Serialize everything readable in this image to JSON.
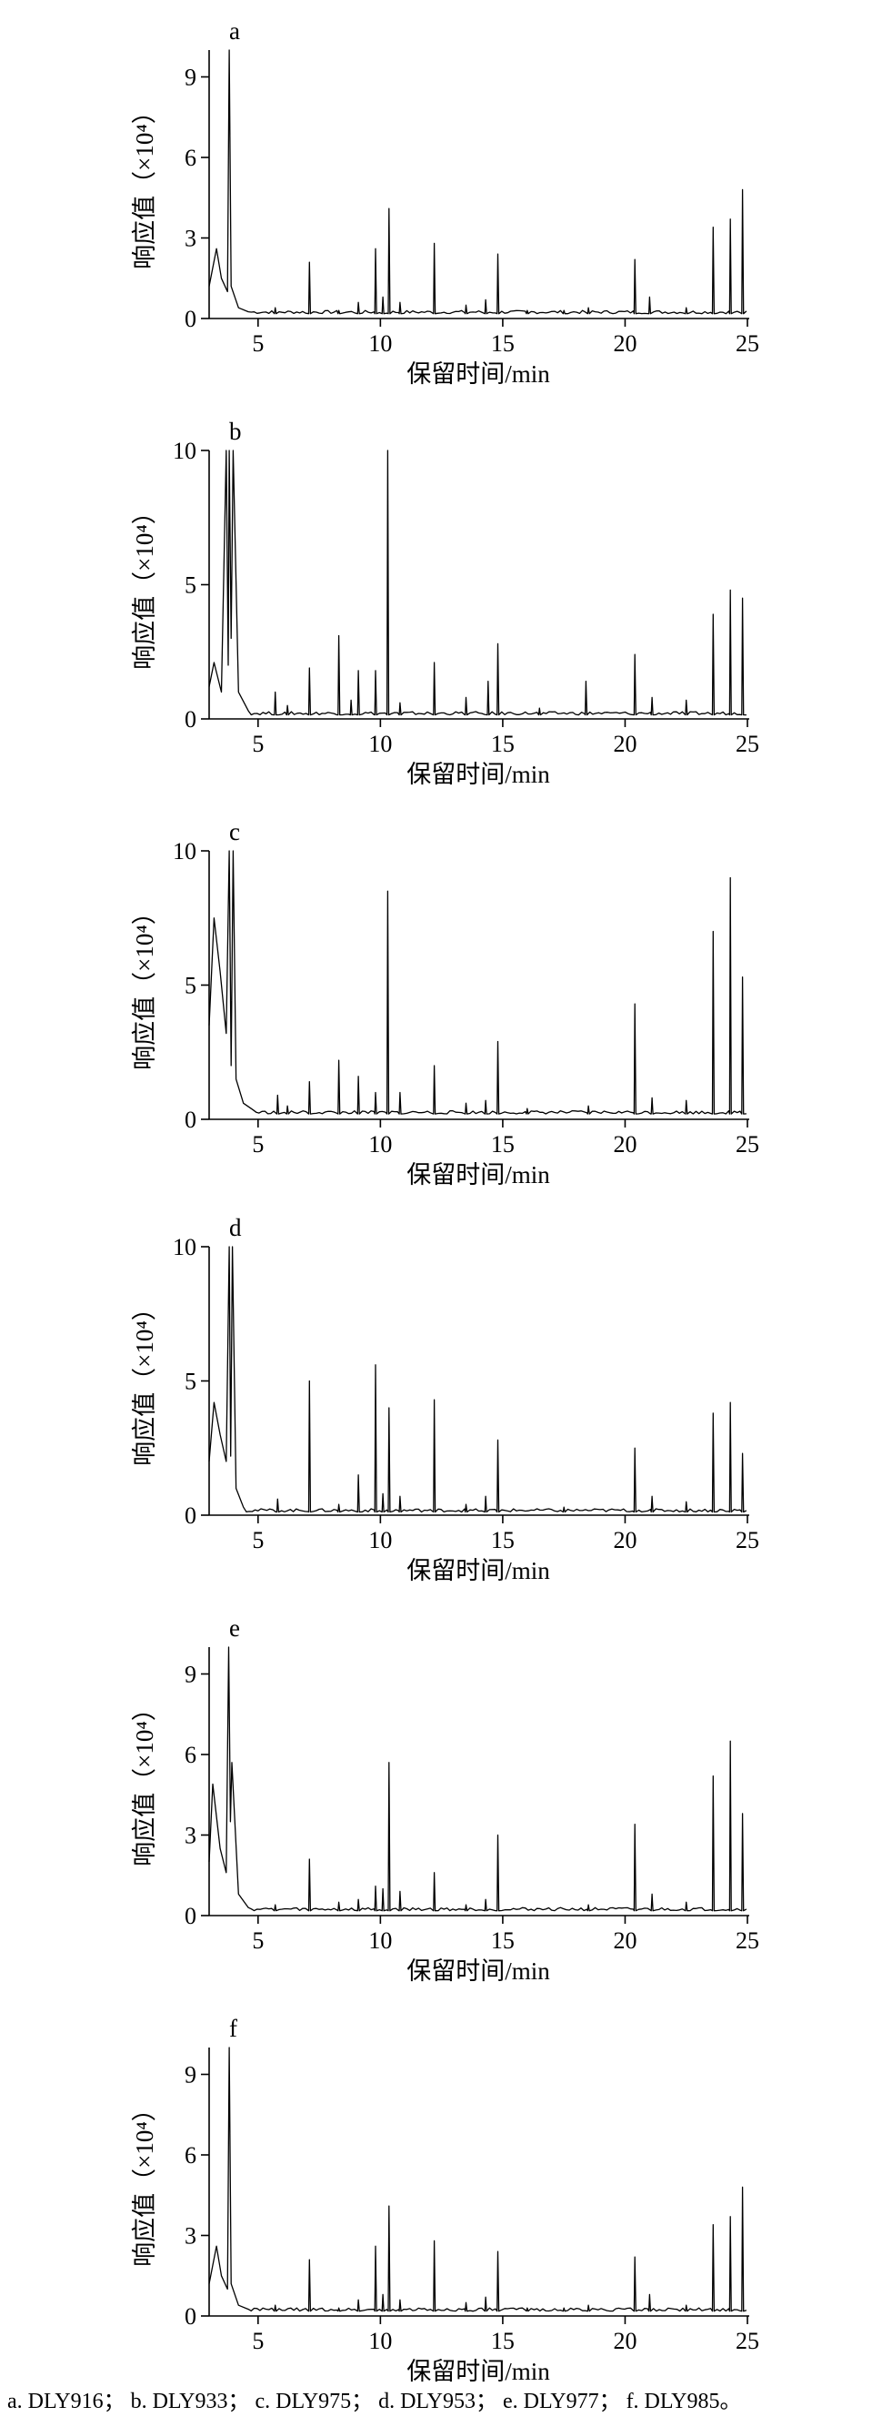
{
  "caption": "a. DLY916； b. DLY933； c. DLY975； d. DLY953； e. DLY977； f. DLY985。",
  "chart_data": [
    {
      "type": "line",
      "label": "a",
      "xlabel": "保留时间/min",
      "ylabel": "响应值（×10⁴）",
      "xlim": [
        3,
        25
      ],
      "ylim": [
        0,
        10
      ],
      "xticks": [
        5,
        10,
        15,
        20,
        25
      ],
      "yticks": [
        0,
        3,
        6,
        9
      ],
      "baseline": 0.18,
      "x": [
        3.0,
        3.3,
        3.5,
        3.75,
        3.82,
        3.9,
        4.2,
        4.6
      ],
      "y": [
        1.2,
        2.6,
        1.5,
        1.0,
        10,
        1.2,
        0.4,
        0.25
      ],
      "peaks": [
        {
          "x": 4.4,
          "y": 0.7
        },
        {
          "x": 5.7,
          "y": 0.4
        },
        {
          "x": 7.1,
          "y": 2.1
        },
        {
          "x": 8.3,
          "y": 0.3
        },
        {
          "x": 9.1,
          "y": 0.6
        },
        {
          "x": 9.8,
          "y": 2.6
        },
        {
          "x": 10.1,
          "y": 0.8
        },
        {
          "x": 10.35,
          "y": 4.1
        },
        {
          "x": 10.8,
          "y": 0.6
        },
        {
          "x": 12.2,
          "y": 2.8
        },
        {
          "x": 13.5,
          "y": 0.5
        },
        {
          "x": 14.3,
          "y": 0.7
        },
        {
          "x": 14.8,
          "y": 2.4
        },
        {
          "x": 16.0,
          "y": 0.3
        },
        {
          "x": 17.5,
          "y": 0.3
        },
        {
          "x": 18.5,
          "y": 0.4
        },
        {
          "x": 20.4,
          "y": 2.2
        },
        {
          "x": 21.0,
          "y": 0.8
        },
        {
          "x": 22.5,
          "y": 0.4
        },
        {
          "x": 23.6,
          "y": 3.4
        },
        {
          "x": 24.3,
          "y": 3.7
        },
        {
          "x": 24.8,
          "y": 4.8
        }
      ]
    },
    {
      "type": "line",
      "label": "b",
      "xlabel": "保留时间/min",
      "ylabel": "响应值（×10⁴）",
      "xlim": [
        3,
        25
      ],
      "ylim": [
        0,
        10
      ],
      "xticks": [
        5,
        10,
        15,
        20,
        25
      ],
      "yticks": [
        0,
        5,
        10
      ],
      "baseline": 0.15,
      "x": [
        3.0,
        3.2,
        3.5,
        3.7,
        3.78,
        3.82,
        3.9,
        3.98,
        4.2,
        4.6
      ],
      "y": [
        1.2,
        2.1,
        1.0,
        10,
        2.0,
        10,
        3.0,
        10,
        1.0,
        0.3
      ],
      "peaks": [
        {
          "x": 4.6,
          "y": 0.5
        },
        {
          "x": 5.7,
          "y": 1.0
        },
        {
          "x": 6.2,
          "y": 0.5
        },
        {
          "x": 7.1,
          "y": 1.9
        },
        {
          "x": 8.3,
          "y": 3.1
        },
        {
          "x": 8.8,
          "y": 0.7
        },
        {
          "x": 9.1,
          "y": 1.8
        },
        {
          "x": 9.8,
          "y": 1.8
        },
        {
          "x": 10.3,
          "y": 10
        },
        {
          "x": 10.8,
          "y": 0.6
        },
        {
          "x": 12.2,
          "y": 2.1
        },
        {
          "x": 13.5,
          "y": 0.8
        },
        {
          "x": 14.4,
          "y": 1.4
        },
        {
          "x": 14.8,
          "y": 2.8
        },
        {
          "x": 16.5,
          "y": 0.4
        },
        {
          "x": 18.4,
          "y": 1.4
        },
        {
          "x": 20.4,
          "y": 2.4
        },
        {
          "x": 21.1,
          "y": 0.8
        },
        {
          "x": 22.5,
          "y": 0.7
        },
        {
          "x": 23.6,
          "y": 3.9
        },
        {
          "x": 24.3,
          "y": 4.8
        },
        {
          "x": 24.8,
          "y": 4.5
        }
      ]
    },
    {
      "type": "line",
      "label": "c",
      "xlabel": "保留时间/min",
      "ylabel": "响应值（×10⁴）",
      "xlim": [
        3,
        25
      ],
      "ylim": [
        0,
        10
      ],
      "xticks": [
        5,
        10,
        15,
        20,
        25
      ],
      "yticks": [
        0,
        5,
        10
      ],
      "baseline": 0.2,
      "x": [
        3.0,
        3.2,
        3.45,
        3.7,
        3.82,
        3.9,
        3.98,
        4.1,
        4.4,
        4.8
      ],
      "y": [
        3.5,
        7.5,
        5.5,
        3.2,
        10,
        2.0,
        10,
        1.5,
        0.6,
        0.35
      ],
      "peaks": [
        {
          "x": 4.5,
          "y": 0.8
        },
        {
          "x": 5.8,
          "y": 0.9
        },
        {
          "x": 6.2,
          "y": 0.5
        },
        {
          "x": 7.1,
          "y": 1.4
        },
        {
          "x": 8.3,
          "y": 2.2
        },
        {
          "x": 9.1,
          "y": 1.6
        },
        {
          "x": 9.8,
          "y": 1.0
        },
        {
          "x": 10.3,
          "y": 8.5
        },
        {
          "x": 10.8,
          "y": 1.0
        },
        {
          "x": 12.2,
          "y": 2.0
        },
        {
          "x": 13.5,
          "y": 0.6
        },
        {
          "x": 14.3,
          "y": 0.7
        },
        {
          "x": 14.8,
          "y": 2.9
        },
        {
          "x": 16.0,
          "y": 0.4
        },
        {
          "x": 18.5,
          "y": 0.5
        },
        {
          "x": 20.4,
          "y": 4.3
        },
        {
          "x": 21.1,
          "y": 0.8
        },
        {
          "x": 22.5,
          "y": 0.7
        },
        {
          "x": 23.6,
          "y": 7.0
        },
        {
          "x": 24.3,
          "y": 9.0
        },
        {
          "x": 24.8,
          "y": 5.3
        }
      ]
    },
    {
      "type": "line",
      "label": "d",
      "xlabel": "保留时间/min",
      "ylabel": "响应值（×10⁴）",
      "xlim": [
        3,
        25
      ],
      "ylim": [
        0,
        10
      ],
      "xticks": [
        5,
        10,
        15,
        20,
        25
      ],
      "yticks": [
        0,
        5,
        10
      ],
      "baseline": 0.12,
      "x": [
        3.0,
        3.2,
        3.45,
        3.7,
        3.82,
        3.88,
        3.95,
        4.1,
        4.4
      ],
      "y": [
        2.0,
        4.2,
        3.0,
        2.0,
        10,
        2.2,
        10,
        1.0,
        0.3
      ],
      "peaks": [
        {
          "x": 4.4,
          "y": 1.2
        },
        {
          "x": 5.8,
          "y": 0.6
        },
        {
          "x": 7.1,
          "y": 5.0
        },
        {
          "x": 8.3,
          "y": 0.4
        },
        {
          "x": 9.1,
          "y": 1.5
        },
        {
          "x": 9.8,
          "y": 5.6
        },
        {
          "x": 10.1,
          "y": 0.8
        },
        {
          "x": 10.35,
          "y": 4.0
        },
        {
          "x": 10.8,
          "y": 0.7
        },
        {
          "x": 12.2,
          "y": 4.3
        },
        {
          "x": 13.5,
          "y": 0.4
        },
        {
          "x": 14.3,
          "y": 0.7
        },
        {
          "x": 14.8,
          "y": 2.8
        },
        {
          "x": 17.5,
          "y": 0.3
        },
        {
          "x": 20.4,
          "y": 2.5
        },
        {
          "x": 21.1,
          "y": 0.7
        },
        {
          "x": 22.5,
          "y": 0.5
        },
        {
          "x": 23.6,
          "y": 3.8
        },
        {
          "x": 24.3,
          "y": 4.2
        },
        {
          "x": 24.8,
          "y": 2.3
        }
      ]
    },
    {
      "type": "line",
      "label": "e",
      "xlabel": "保留时间/min",
      "ylabel": "响应值（×10⁴）",
      "xlim": [
        3,
        25
      ],
      "ylim": [
        0,
        10
      ],
      "xticks": [
        5,
        10,
        15,
        20,
        25
      ],
      "yticks": [
        0,
        3,
        6,
        9
      ],
      "baseline": 0.18,
      "x": [
        3.0,
        3.15,
        3.45,
        3.7,
        3.8,
        3.87,
        3.93,
        4.2,
        4.6
      ],
      "y": [
        2.0,
        4.9,
        2.5,
        1.6,
        10,
        3.5,
        5.7,
        0.8,
        0.3
      ],
      "peaks": [
        {
          "x": 4.5,
          "y": 1.1
        },
        {
          "x": 5.7,
          "y": 0.4
        },
        {
          "x": 7.1,
          "y": 2.1
        },
        {
          "x": 8.3,
          "y": 0.5
        },
        {
          "x": 9.1,
          "y": 0.6
        },
        {
          "x": 9.8,
          "y": 1.1
        },
        {
          "x": 10.1,
          "y": 1.0
        },
        {
          "x": 10.35,
          "y": 5.7
        },
        {
          "x": 10.8,
          "y": 0.9
        },
        {
          "x": 12.2,
          "y": 1.6
        },
        {
          "x": 13.5,
          "y": 0.4
        },
        {
          "x": 14.3,
          "y": 0.6
        },
        {
          "x": 14.8,
          "y": 3.0
        },
        {
          "x": 18.5,
          "y": 0.4
        },
        {
          "x": 20.4,
          "y": 3.4
        },
        {
          "x": 21.1,
          "y": 0.8
        },
        {
          "x": 22.5,
          "y": 0.5
        },
        {
          "x": 23.6,
          "y": 5.2
        },
        {
          "x": 24.3,
          "y": 6.5
        },
        {
          "x": 24.8,
          "y": 3.8
        }
      ]
    },
    {
      "type": "line",
      "label": "f",
      "xlabel": "保留时间/min",
      "ylabel": "响应值（×10⁴）",
      "xlim": [
        3,
        25
      ],
      "ylim": [
        0,
        10
      ],
      "xticks": [
        5,
        10,
        15,
        20,
        25
      ],
      "yticks": [
        0,
        3,
        6,
        9
      ],
      "baseline": 0.18,
      "x": [
        3.0,
        3.3,
        3.5,
        3.75,
        3.82,
        3.9,
        4.2,
        4.6
      ],
      "y": [
        1.2,
        2.6,
        1.5,
        1.0,
        10,
        1.2,
        0.4,
        0.25
      ],
      "peaks": [
        {
          "x": 4.4,
          "y": 0.7
        },
        {
          "x": 5.7,
          "y": 0.4
        },
        {
          "x": 7.1,
          "y": 2.1
        },
        {
          "x": 8.3,
          "y": 0.3
        },
        {
          "x": 9.1,
          "y": 0.6
        },
        {
          "x": 9.8,
          "y": 2.6
        },
        {
          "x": 10.1,
          "y": 0.8
        },
        {
          "x": 10.35,
          "y": 4.1
        },
        {
          "x": 10.8,
          "y": 0.6
        },
        {
          "x": 12.2,
          "y": 2.8
        },
        {
          "x": 13.5,
          "y": 0.5
        },
        {
          "x": 14.3,
          "y": 0.7
        },
        {
          "x": 14.8,
          "y": 2.4
        },
        {
          "x": 16.0,
          "y": 0.3
        },
        {
          "x": 17.5,
          "y": 0.3
        },
        {
          "x": 18.5,
          "y": 0.4
        },
        {
          "x": 20.4,
          "y": 2.2
        },
        {
          "x": 21.0,
          "y": 0.8
        },
        {
          "x": 22.5,
          "y": 0.4
        },
        {
          "x": 23.6,
          "y": 3.4
        },
        {
          "x": 24.3,
          "y": 3.7
        },
        {
          "x": 24.8,
          "y": 4.8
        }
      ]
    }
  ]
}
